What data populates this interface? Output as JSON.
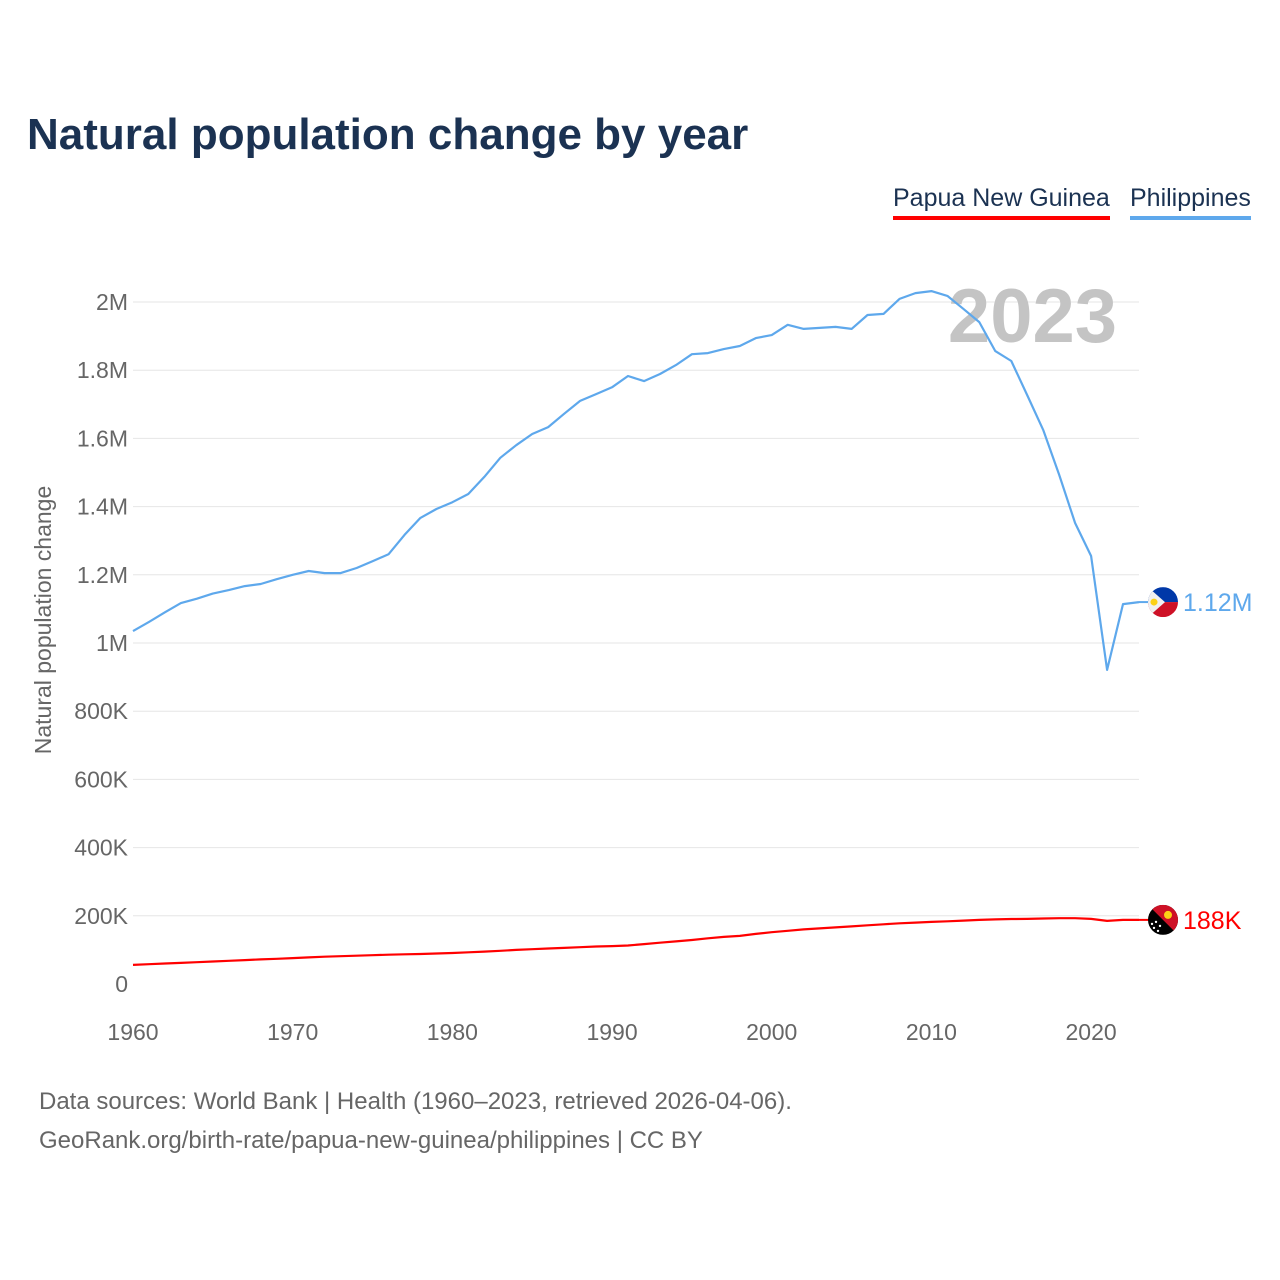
{
  "chart_data": {
    "type": "line",
    "title": "Natural population change by year",
    "xlabel": "",
    "ylabel": "Natural population change",
    "xlim": [
      1960,
      2023
    ],
    "ylim": [
      0,
      2000000
    ],
    "x_ticks": [
      1960,
      1970,
      1980,
      1990,
      2000,
      2010,
      2020
    ],
    "x_tick_labels": [
      "1960",
      "1970",
      "1980",
      "1990",
      "2000",
      "2010",
      "2020"
    ],
    "y_ticks": [
      0,
      200000,
      400000,
      600000,
      800000,
      1000000,
      1200000,
      1400000,
      1600000,
      1800000,
      2000000
    ],
    "y_tick_labels": [
      "0",
      "200K",
      "400K",
      "600K",
      "800K",
      "1M",
      "1.2M",
      "1.4M",
      "1.6M",
      "1.8M",
      "2M"
    ],
    "grid": true,
    "legend_position": "top-right",
    "annotation": "2023",
    "x": [
      1960,
      1961,
      1962,
      1963,
      1964,
      1965,
      1966,
      1967,
      1968,
      1969,
      1970,
      1971,
      1972,
      1973,
      1974,
      1975,
      1976,
      1977,
      1978,
      1979,
      1980,
      1981,
      1982,
      1983,
      1984,
      1985,
      1986,
      1987,
      1988,
      1989,
      1990,
      1991,
      1992,
      1993,
      1994,
      1995,
      1996,
      1997,
      1998,
      1999,
      2000,
      2001,
      2002,
      2003,
      2004,
      2005,
      2006,
      2007,
      2008,
      2009,
      2010,
      2011,
      2012,
      2013,
      2014,
      2015,
      2016,
      2017,
      2018,
      2019,
      2020,
      2021,
      2022,
      2023
    ],
    "series": [
      {
        "name": "Papua New Guinea",
        "color": "#ff0000",
        "end_label": "188K",
        "flag": "papua-new-guinea",
        "values": [
          56000,
          58000,
          60000,
          62000,
          64000,
          66000,
          68000,
          70000,
          72000,
          74000,
          76000,
          78000,
          80000,
          81500,
          83000,
          84500,
          86000,
          87000,
          88000,
          89500,
          91000,
          93000,
          95000,
          97500,
          100000,
          102000,
          104000,
          106000,
          108000,
          110000,
          111000,
          113000,
          117000,
          121000,
          125000,
          129000,
          134000,
          138000,
          141000,
          147000,
          152000,
          156000,
          160000,
          163000,
          166000,
          169000,
          172000,
          175000,
          178000,
          180000,
          182000,
          184000,
          186000,
          188000,
          189500,
          190500,
          191000,
          192000,
          193000,
          193000,
          191000,
          185000,
          188000,
          188000
        ]
      },
      {
        "name": "Philippines",
        "color": "#5ea8ec",
        "end_label": "1.12M",
        "flag": "philippines",
        "values": [
          1035000,
          1062000,
          1090000,
          1117000,
          1130000,
          1145000,
          1155000,
          1167000,
          1173000,
          1187000,
          1200000,
          1211000,
          1205000,
          1205000,
          1220000,
          1240000,
          1260000,
          1317000,
          1367000,
          1393000,
          1413000,
          1437000,
          1487000,
          1543000,
          1580000,
          1613000,
          1633000,
          1672000,
          1710000,
          1730000,
          1750000,
          1783000,
          1768000,
          1789000,
          1815000,
          1847000,
          1850000,
          1862000,
          1871000,
          1894000,
          1903000,
          1933000,
          1921000,
          1924000,
          1927000,
          1921000,
          1962000,
          1965000,
          2009000,
          2026000,
          2032000,
          2018000,
          1980000,
          1941000,
          1856000,
          1827000,
          1727000,
          1625000,
          1493000,
          1352000,
          1255000,
          921000,
          1114000,
          1120000
        ]
      }
    ]
  },
  "footer": {
    "source": "Data sources: World Bank | Health (1960–2023, retrieved 2026-04-06).",
    "credit": "GeoRank.org/birth-rate/papua-new-guinea/philippines | CC BY"
  }
}
